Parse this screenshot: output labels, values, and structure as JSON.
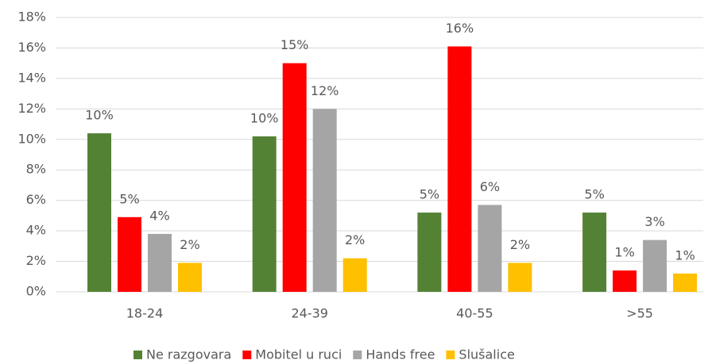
{
  "chart_data": {
    "type": "bar",
    "categories": [
      "18-24",
      "24-39",
      "40-55",
      ">55"
    ],
    "series": [
      {
        "name": "Ne razgovara",
        "color": "#548235",
        "values": [
          10.4,
          10.2,
          5.2,
          5.2
        ],
        "value_labels": [
          "10%",
          "10%",
          "5%",
          "5%"
        ]
      },
      {
        "name": "Mobitel u ruci",
        "color": "#ff0000",
        "values": [
          4.9,
          15.0,
          16.1,
          1.4
        ],
        "value_labels": [
          "5%",
          "15%",
          "16%",
          "1%"
        ]
      },
      {
        "name": "Hands free",
        "color": "#a5a5a5",
        "values": [
          3.8,
          12.0,
          5.7,
          3.4
        ],
        "value_labels": [
          "4%",
          "12%",
          "6%",
          "3%"
        ]
      },
      {
        "name": "Slušalice",
        "color": "#ffc000",
        "values": [
          1.9,
          2.2,
          1.9,
          1.2
        ],
        "value_labels": [
          "2%",
          "2%",
          "2%",
          "1%"
        ]
      }
    ],
    "ylim": [
      0,
      18
    ],
    "yticks": [
      {
        "value": 0,
        "label": "0%"
      },
      {
        "value": 2,
        "label": "2%"
      },
      {
        "value": 4,
        "label": "4%"
      },
      {
        "value": 6,
        "label": "6%"
      },
      {
        "value": 8,
        "label": "8%"
      },
      {
        "value": 10,
        "label": "10%"
      },
      {
        "value": 12,
        "label": "12%"
      },
      {
        "value": 14,
        "label": "14%"
      },
      {
        "value": 16,
        "label": "16%"
      },
      {
        "value": 18,
        "label": "18%"
      }
    ],
    "grid": true
  }
}
